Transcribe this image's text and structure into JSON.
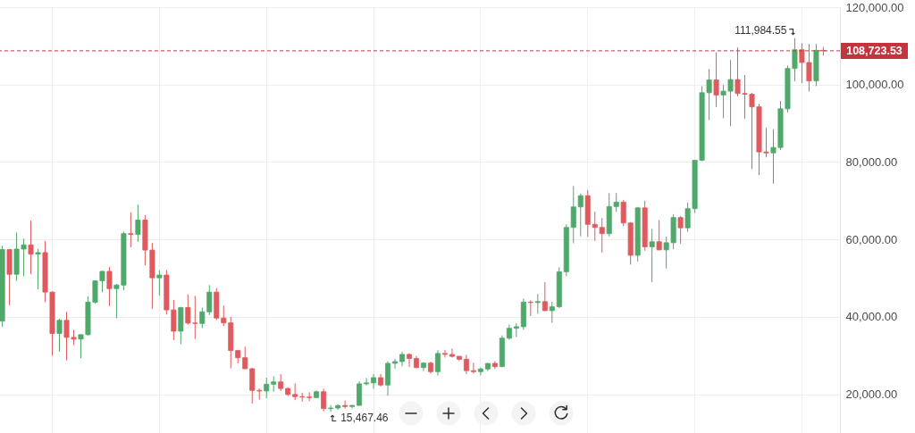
{
  "chart_data": {
    "type": "candlestick",
    "categories": [
      null,
      null,
      null,
      null,
      null,
      null,
      null,
      null,
      null,
      null,
      null,
      null,
      null,
      null,
      null,
      null,
      null,
      null,
      null,
      null,
      null,
      null,
      null,
      null,
      null,
      null,
      null,
      null,
      null,
      null,
      null,
      null,
      null,
      null,
      null,
      null,
      null,
      null,
      null,
      null,
      null,
      null,
      null,
      null,
      null,
      null,
      null,
      null,
      null,
      null,
      null,
      null,
      null,
      null,
      null,
      null,
      null,
      null,
      null,
      null,
      null,
      null,
      null,
      null,
      null,
      null,
      null,
      null,
      null,
      null,
      null,
      null,
      null,
      null,
      null,
      null,
      null,
      null,
      null,
      null,
      null,
      null,
      null,
      null,
      null,
      null,
      null,
      null,
      null,
      null,
      null,
      null,
      null,
      null,
      null,
      null,
      null,
      null,
      null,
      null,
      null,
      null,
      null,
      null,
      null,
      null,
      null,
      null,
      null,
      null,
      null,
      null,
      null,
      null,
      null,
      null
    ],
    "ohlc": [
      [
        38900,
        58350,
        37400,
        57400
      ],
      [
        57400,
        57500,
        43000,
        51000
      ],
      [
        51000,
        61780,
        49300,
        57500
      ],
      [
        57500,
        60200,
        50500,
        58600
      ],
      [
        58600,
        64850,
        51000,
        56200
      ],
      [
        56200,
        57500,
        47100,
        56600
      ],
      [
        56600,
        59600,
        43800,
        46400
      ],
      [
        46400,
        46600,
        30000,
        35700
      ],
      [
        35700,
        39500,
        31000,
        39100
      ],
      [
        39100,
        41300,
        28800,
        34700
      ],
      [
        34700,
        36600,
        32700,
        34250
      ],
      [
        34250,
        35400,
        29300,
        35400
      ],
      [
        35400,
        45300,
        35200,
        43800
      ],
      [
        43800,
        49400,
        43400,
        49300
      ],
      [
        49300,
        51900,
        46400,
        51750
      ],
      [
        51750,
        52900,
        42800,
        47300
      ],
      [
        47300,
        48500,
        39600,
        48200
      ],
      [
        48200,
        62000,
        46900,
        61500
      ],
      [
        61500,
        67000,
        58000,
        61300
      ],
      [
        61300,
        69000,
        59400,
        65000
      ],
      [
        65000,
        66300,
        53300,
        57250
      ],
      [
        57250,
        59100,
        42000,
        50100
      ],
      [
        50100,
        52000,
        45500,
        50800
      ],
      [
        50800,
        52100,
        40600,
        41800
      ],
      [
        41800,
        44400,
        34000,
        36300
      ],
      [
        36300,
        42600,
        32950,
        42400
      ],
      [
        42400,
        45800,
        38000,
        38400
      ],
      [
        38400,
        45400,
        34300,
        38300
      ],
      [
        38300,
        42400,
        37100,
        41300
      ],
      [
        41300,
        48200,
        40500,
        46400
      ],
      [
        46400,
        47400,
        39200,
        39700
      ],
      [
        39700,
        42900,
        37600,
        38450
      ],
      [
        38450,
        40000,
        26700,
        31300
      ],
      [
        31300,
        31400,
        28000,
        29450
      ],
      [
        29450,
        32300,
        26550,
        26600
      ],
      [
        26600,
        26800,
        17600,
        21000
      ],
      [
        21000,
        21500,
        18600,
        20850
      ],
      [
        20850,
        24300,
        19000,
        22600
      ],
      [
        22600,
        24650,
        20700,
        23200
      ],
      [
        23200,
        25200,
        20800,
        21500
      ],
      [
        21500,
        21800,
        19550,
        19950
      ],
      [
        19950,
        22800,
        18500,
        19400
      ],
      [
        19400,
        20400,
        18100,
        19300
      ],
      [
        19300,
        20500,
        18200,
        19150
      ],
      [
        19150,
        21000,
        18950,
        20650
      ],
      [
        20650,
        21450,
        15600,
        16300
      ],
      [
        16300,
        17200,
        15467.46,
        16450
      ],
      [
        16450,
        17420,
        16000,
        17100
      ],
      [
        17100,
        18400,
        16300,
        16840
      ],
      [
        16840,
        17200,
        16300,
        17130
      ],
      [
        17130,
        23370,
        17100,
        22700
      ],
      [
        22700,
        24200,
        22300,
        22940
      ],
      [
        22940,
        25250,
        21400,
        24300
      ],
      [
        24300,
        25250,
        22000,
        22400
      ],
      [
        22400,
        28500,
        19600,
        28000
      ],
      [
        28000,
        29200,
        26600,
        28450
      ],
      [
        28450,
        31000,
        27200,
        30300
      ],
      [
        30300,
        30600,
        27000,
        29250
      ],
      [
        29250,
        29900,
        26700,
        26900
      ],
      [
        26900,
        28300,
        26000,
        28050
      ],
      [
        28050,
        28450,
        25350,
        25850
      ],
      [
        25850,
        31400,
        24800,
        30550
      ],
      [
        30550,
        31500,
        29500,
        30300
      ],
      [
        30300,
        31800,
        29500,
        29800
      ],
      [
        29800,
        29950,
        28600,
        29050
      ],
      [
        29050,
        30200,
        25200,
        26100
      ],
      [
        26100,
        28150,
        25350,
        25850
      ],
      [
        25850,
        26850,
        24900,
        26550
      ],
      [
        26550,
        28000,
        26000,
        27980
      ],
      [
        27980,
        28600,
        26550,
        27150
      ],
      [
        27150,
        35200,
        27000,
        34500
      ],
      [
        34500,
        38000,
        34100,
        37050
      ],
      [
        37050,
        38400,
        34800,
        37450
      ],
      [
        37450,
        44700,
        36700,
        43800
      ],
      [
        43800,
        44300,
        40200,
        43700
      ],
      [
        43700,
        45900,
        40800,
        43950
      ],
      [
        43950,
        49000,
        41500,
        41600
      ],
      [
        41600,
        43900,
        38500,
        42600
      ],
      [
        42600,
        52800,
        42300,
        51650
      ],
      [
        51650,
        63900,
        50500,
        63100
      ],
      [
        63100,
        73800,
        59000,
        68400
      ],
      [
        68400,
        71800,
        60800,
        71300
      ],
      [
        71300,
        72800,
        60700,
        63900
      ],
      [
        63900,
        67200,
        59600,
        63100
      ],
      [
        63100,
        65500,
        56550,
        61500
      ],
      [
        61500,
        71950,
        60800,
        68500
      ],
      [
        68500,
        72000,
        67100,
        69650
      ],
      [
        69650,
        70200,
        63400,
        64250
      ],
      [
        64250,
        64500,
        53500,
        55900
      ],
      [
        55900,
        68400,
        54300,
        68150
      ],
      [
        68150,
        70000,
        57100,
        58100
      ],
      [
        58100,
        62700,
        49000,
        59400
      ],
      [
        59400,
        65000,
        57200,
        57300
      ],
      [
        57300,
        60700,
        52500,
        59150
      ],
      [
        59150,
        66500,
        57500,
        65650
      ],
      [
        65650,
        66000,
        58900,
        63000
      ],
      [
        63000,
        69500,
        62000,
        67950
      ],
      [
        67950,
        80500,
        66800,
        80450
      ],
      [
        80450,
        99600,
        80200,
        97900
      ],
      [
        97900,
        104000,
        90800,
        101200
      ],
      [
        101200,
        108350,
        94200,
        97300
      ],
      [
        97300,
        99900,
        91300,
        98300
      ],
      [
        98300,
        106300,
        89250,
        101300
      ],
      [
        101300,
        109600,
        97000,
        97700
      ],
      [
        97700,
        102500,
        91200,
        97500
      ],
      [
        97500,
        97900,
        78200,
        94250
      ],
      [
        94250,
        95000,
        76600,
        82600
      ],
      [
        82600,
        88800,
        81200,
        82350
      ],
      [
        82350,
        88500,
        74400,
        83750
      ],
      [
        83750,
        95800,
        83100,
        93750
      ],
      [
        93750,
        104900,
        92800,
        104150
      ],
      [
        104150,
        111984.55,
        100800,
        109000
      ],
      [
        109000,
        110700,
        100400,
        105700
      ],
      [
        105700,
        110500,
        98200,
        100950
      ],
      [
        100950,
        110500,
        99600,
        108850
      ],
      [
        108850,
        109700,
        107500,
        108723.53
      ]
    ],
    "colors": [
      "#4fa96a",
      "#df5a5e",
      "#4fa96a",
      "#4fa96a",
      "#df5a5e",
      "#4fa96a",
      "#df5a5e",
      "#df5a5e",
      "#4fa96a",
      "#df5a5e",
      "#df5a5e",
      "#4fa96a",
      "#4fa96a",
      "#4fa96a",
      "#4fa96a",
      "#df5a5e",
      "#4fa96a",
      "#4fa96a",
      "#df5a5e",
      "#4fa96a",
      "#df5a5e",
      "#df5a5e",
      "#4fa96a",
      "#df5a5e",
      "#df5a5e",
      "#4fa96a",
      "#df5a5e",
      "#df5a5e",
      "#4fa96a",
      "#4fa96a",
      "#df5a5e",
      "#df5a5e",
      "#df5a5e",
      "#df5a5e",
      "#df5a5e",
      "#df5a5e",
      "#df5a5e",
      "#4fa96a",
      "#4fa96a",
      "#df5a5e",
      "#df5a5e",
      "#df5a5e",
      "#df5a5e",
      "#df5a5e",
      "#4fa96a",
      "#df5a5e",
      "#4fa96a",
      "#4fa96a",
      "#df5a5e",
      "#4fa96a",
      "#4fa96a",
      "#4fa96a",
      "#4fa96a",
      "#df5a5e",
      "#4fa96a",
      "#4fa96a",
      "#4fa96a",
      "#df5a5e",
      "#df5a5e",
      "#4fa96a",
      "#df5a5e",
      "#4fa96a",
      "#df5a5e",
      "#df5a5e",
      "#df5a5e",
      "#df5a5e",
      "#df5a5e",
      "#4fa96a",
      "#4fa96a",
      "#df5a5e",
      "#4fa96a",
      "#4fa96a",
      "#4fa96a",
      "#4fa96a",
      "#df5a5e",
      "#4fa96a",
      "#df5a5e",
      "#4fa96a",
      "#4fa96a",
      "#4fa96a",
      "#4fa96a",
      "#4fa96a",
      "#df5a5e",
      "#df5a5e",
      "#df5a5e",
      "#4fa96a",
      "#4fa96a",
      "#df5a5e",
      "#df5a5e",
      "#4fa96a",
      "#df5a5e",
      "#4fa96a",
      "#df5a5e",
      "#4fa96a",
      "#4fa96a",
      "#df5a5e",
      "#4fa96a",
      "#4fa96a",
      "#4fa96a",
      "#4fa96a",
      "#df5a5e",
      "#4fa96a",
      "#4fa96a",
      "#df5a5e",
      "#df5a5e",
      "#df5a5e",
      "#df5a5e",
      "#df5a5e",
      "#4fa96a",
      "#4fa96a",
      "#4fa96a",
      "#4fa96a",
      "#df5a5e",
      "#df5a5e",
      "#4fa96a",
      "#df5a5e"
    ],
    "ylim": [
      10000,
      120000
    ],
    "yticks": [
      {
        "value": 20000,
        "label": "20,000.00"
      },
      {
        "value": 40000,
        "label": "40,000.00"
      },
      {
        "value": 60000,
        "label": "60,000.00"
      },
      {
        "value": 80000,
        "label": "80,000.00"
      },
      {
        "value": 100000,
        "label": "100,000.00"
      },
      {
        "value": 120000,
        "label": "120,000.00"
      }
    ],
    "grid": true,
    "tick_labels": "y",
    "ref_lines": [
      {
        "axis": "y",
        "value": 108723.53,
        "label": "108,723.53",
        "color": "#c4343e",
        "line_style": "dashed"
      }
    ],
    "annotations": [
      "111,984.55",
      "15,467.46"
    ]
  }
}
